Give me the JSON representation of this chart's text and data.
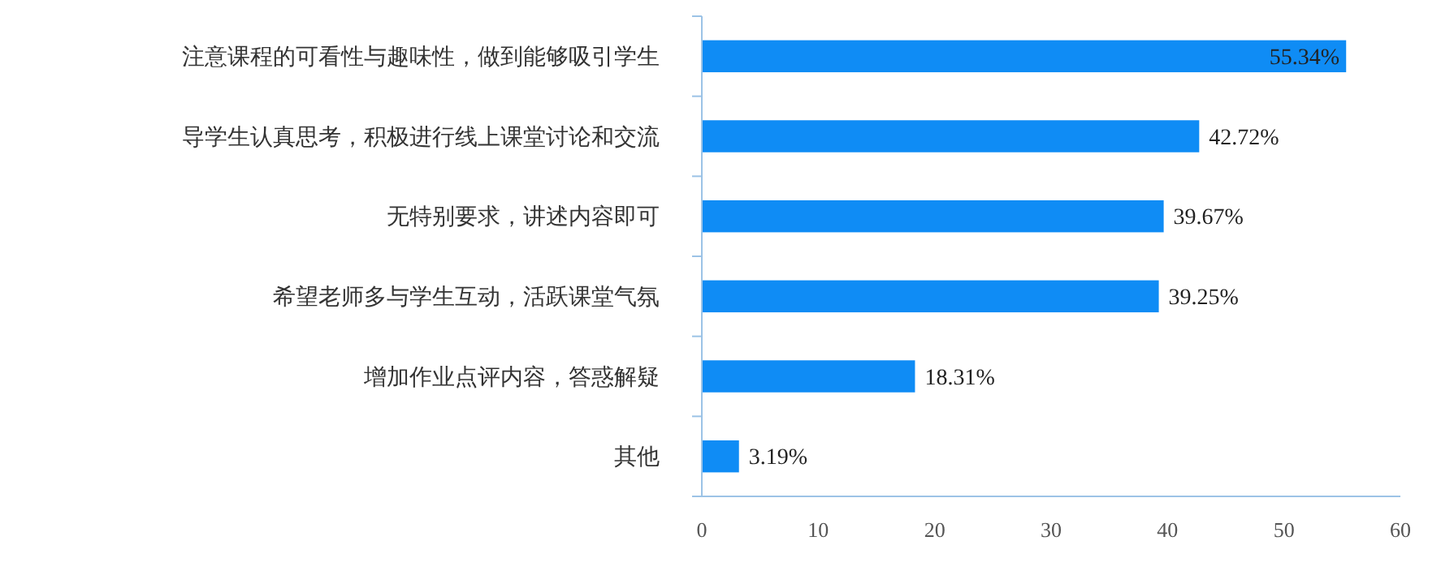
{
  "chart_data": {
    "type": "bar",
    "orientation": "horizontal",
    "categories": [
      "注意课程的可看性与趣味性，做到能够吸引学生",
      "导学生认真思考，积极进行线上课堂讨论和交流",
      "无特别要求，讲述内容即可",
      "希望老师多与学生互动，活跃课堂气氛",
      "增加作业点评内容，答惑解疑",
      "其他"
    ],
    "values": [
      55.34,
      42.72,
      39.67,
      39.25,
      18.31,
      3.19
    ],
    "value_labels": [
      "55.34%",
      "42.72%",
      "39.67%",
      "39.25%",
      "18.31%",
      "3.19%"
    ],
    "color": "#0f8cf5",
    "xlim": [
      0,
      60
    ],
    "xticks": [
      0,
      10,
      20,
      30,
      40,
      50,
      60
    ],
    "grid": false
  }
}
